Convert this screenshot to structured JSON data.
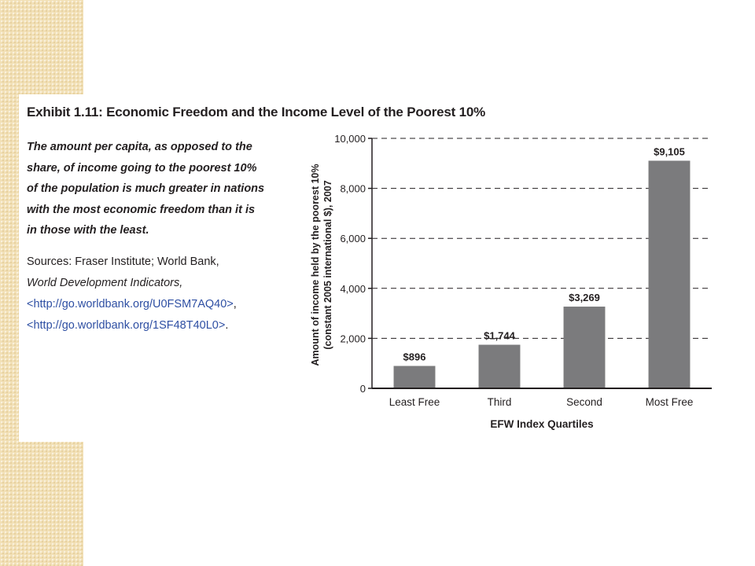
{
  "exhibit": {
    "title": "Exhibit 1.11:  Economic Freedom and the Income Level of the Poorest 10%"
  },
  "caption_lines": [
    "The amount per capita, as opposed to the",
    "share, of income going to the poorest 10%",
    "of the population is much greater in nations",
    "with the most economic freedom than it is",
    "in those with the least."
  ],
  "sources": {
    "prefix": "Sources:  Fraser Institute; World Bank,",
    "publication": "World Development Indicators,",
    "url1": "<http://go.worldbank.org/U0FSM7AQ40>",
    "url1_suffix": ",",
    "url2": "<http://go.worldbank.org/1SF48T40L0>",
    "url2_suffix": "."
  },
  "colors": {
    "bar": "#7b7b7d",
    "axis": "#231f20",
    "url": "#2e4fa3"
  },
  "chart_data": {
    "type": "bar",
    "categories": [
      "Least Free",
      "Third",
      "Second",
      "Most Free"
    ],
    "values": [
      896,
      1744,
      3269,
      9105
    ],
    "data_labels": [
      "$896",
      "$1,744",
      "$3,269",
      "$9,105"
    ],
    "xlabel": "EFW Index Quartiles",
    "ylabel_lines": [
      "Amount of income held by the poorest 10%",
      "(constant 2005 international $), 2007"
    ],
    "ylim": [
      0,
      10000
    ],
    "yticks": [
      0,
      2000,
      4000,
      6000,
      8000,
      10000
    ],
    "ytick_labels": [
      "0",
      "2,000",
      "4,000",
      "6,000",
      "8,000",
      "10,000"
    ],
    "grid": "dashed horizontal"
  }
}
